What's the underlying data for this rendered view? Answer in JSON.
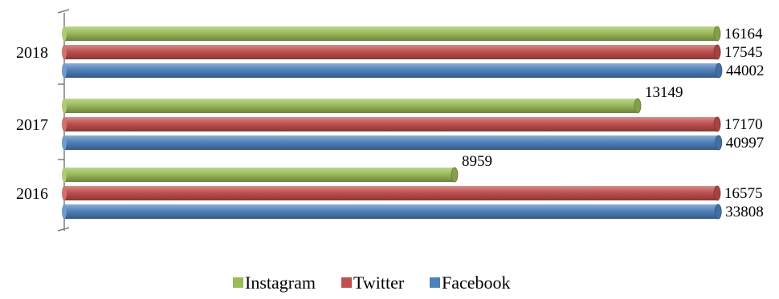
{
  "chart_data": {
    "type": "bar",
    "orientation": "horizontal",
    "categories": [
      "2016",
      "2017",
      "2018"
    ],
    "series": [
      {
        "name": "Instagram",
        "values": [
          8959,
          13149,
          16164
        ],
        "color": "#9bbb59"
      },
      {
        "name": "Twitter",
        "values": [
          16575,
          17170,
          17545
        ],
        "color": "#c0504d"
      },
      {
        "name": "Facebook",
        "values": [
          33808,
          40997,
          44002
        ],
        "color": "#4f81bd"
      }
    ],
    "value_labels": [
      [
        "8959",
        "16575",
        "33808"
      ],
      [
        "13149",
        "17170",
        "40997"
      ],
      [
        "16164",
        "17545",
        "44002"
      ]
    ],
    "legend": {
      "position": "bottom",
      "entries": [
        "Instagram",
        "Twitter",
        "Facebook"
      ]
    },
    "axis_break": true,
    "grid": false
  }
}
